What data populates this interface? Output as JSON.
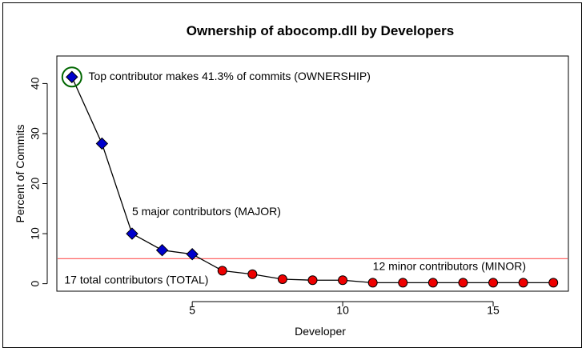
{
  "chart_data": {
    "type": "scatter",
    "title": "Ownership of abocomp.dll by Developers",
    "xlabel": "Developer",
    "ylabel": "Percent of Commits",
    "xlim": [
      0.5,
      17.5
    ],
    "ylim": [
      -1.5,
      45.5
    ],
    "x_ticks": [
      5,
      10,
      15
    ],
    "y_ticks": [
      0,
      10,
      20,
      30,
      40
    ],
    "grid": false,
    "threshold": {
      "value": 5,
      "color": "#ff6666"
    },
    "series": [
      {
        "marker": "diamond",
        "color": "#0000cc",
        "points": [
          [
            1,
            41.3
          ],
          [
            2,
            28.0
          ],
          [
            3,
            10.0
          ],
          [
            4,
            6.7
          ],
          [
            5,
            5.9
          ]
        ]
      },
      {
        "marker": "circle",
        "color": "#ee0000",
        "points": [
          [
            6,
            2.6
          ],
          [
            7,
            1.9
          ],
          [
            8,
            0.9
          ],
          [
            9,
            0.7
          ],
          [
            10,
            0.7
          ],
          [
            11,
            0.2
          ],
          [
            12,
            0.2
          ],
          [
            13,
            0.2
          ],
          [
            14,
            0.2
          ],
          [
            15,
            0.2
          ],
          [
            16,
            0.2
          ],
          [
            17,
            0.2
          ]
        ]
      }
    ],
    "highlight": {
      "x": 1,
      "y": 41.3,
      "color": "#006600"
    },
    "annotations": [
      {
        "text": "Top contributor makes 41.3% of commits (OWNERSHIP)",
        "x": 1.55,
        "y": 41.3
      },
      {
        "text": "5 major contributors (MAJOR)",
        "x": 3.0,
        "y": 14.3
      },
      {
        "text": "12 minor contributors (MINOR)",
        "x": 11.0,
        "y": 3.3
      },
      {
        "text": "17 total contributors (TOTAL)",
        "x": 0.75,
        "y": 0.6
      }
    ]
  }
}
